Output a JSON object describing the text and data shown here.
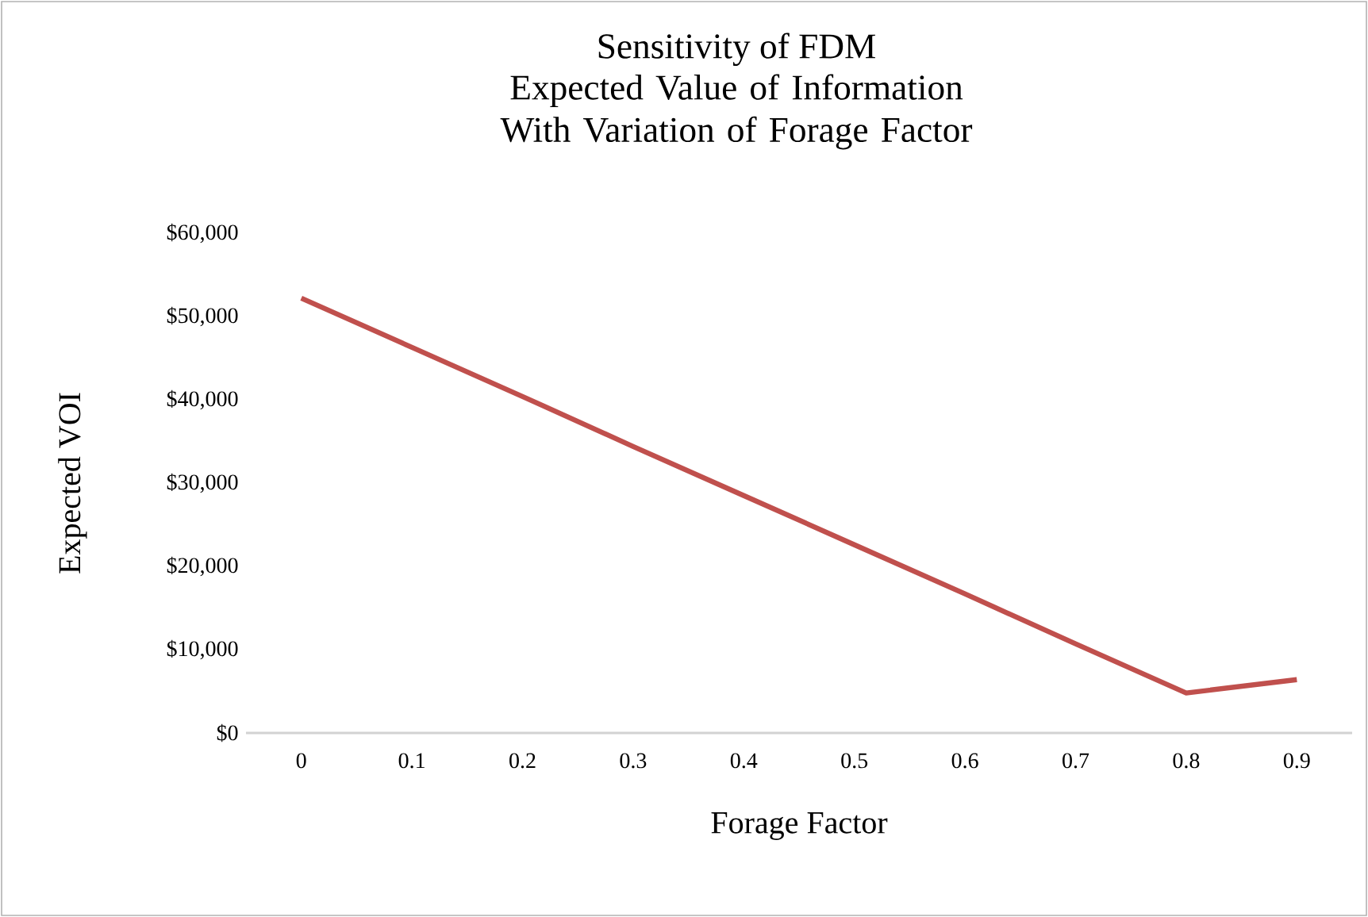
{
  "chart_data": {
    "type": "line",
    "title": "Sensitivity of FDM",
    "subtitle": "Expected Value of Information With Variation of Forage Factor",
    "xlabel": "Forage Factor",
    "ylabel": "Expected VOI",
    "categories": [
      "0",
      "0.1",
      "0.2",
      "0.3",
      "0.4",
      "0.5",
      "0.6",
      "0.7",
      "0.8",
      "0.9"
    ],
    "series": [
      {
        "color": "#c0504d",
        "values": [
          52200,
          46300,
          40400,
          34400,
          28500,
          22600,
          16700,
          10700,
          4800,
          6400
        ]
      }
    ],
    "ylim": [
      0,
      60000
    ],
    "yticks": [
      {
        "value": 0,
        "label": "$0"
      },
      {
        "value": 10000,
        "label": "$10,000"
      },
      {
        "value": 20000,
        "label": "$20,000"
      },
      {
        "value": 30000,
        "label": "$30,000"
      },
      {
        "value": 40000,
        "label": "$40,000"
      },
      {
        "value": 50000,
        "label": "$50,000"
      },
      {
        "value": 60000,
        "label": "$60,000"
      }
    ],
    "grid": false,
    "marker": "none",
    "line_style": "solid"
  }
}
